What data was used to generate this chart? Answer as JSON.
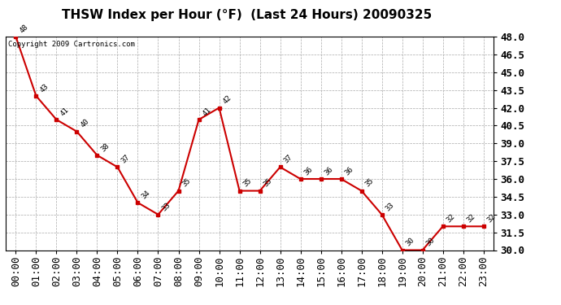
{
  "title": "THSW Index per Hour (°F)  (Last 24 Hours) 20090325",
  "copyright": "Copyright 2009 Cartronics.com",
  "hours": [
    "00:00",
    "01:00",
    "02:00",
    "03:00",
    "04:00",
    "05:00",
    "06:00",
    "07:00",
    "08:00",
    "09:00",
    "10:00",
    "11:00",
    "12:00",
    "13:00",
    "14:00",
    "15:00",
    "16:00",
    "17:00",
    "18:00",
    "19:00",
    "20:00",
    "21:00",
    "22:00",
    "23:00"
  ],
  "values": [
    48,
    43,
    41,
    40,
    38,
    37,
    34,
    33,
    35,
    41,
    42,
    35,
    35,
    37,
    36,
    36,
    36,
    35,
    33,
    30,
    30,
    32,
    32,
    32
  ],
  "line_color": "#cc0000",
  "marker_color": "#cc0000",
  "bg_color": "#ffffff",
  "plot_bg_color": "#ffffff",
  "grid_color": "#aaaaaa",
  "ylim_min": 30.0,
  "ylim_max": 48.0,
  "yticks": [
    30.0,
    31.5,
    33.0,
    34.5,
    36.0,
    37.5,
    39.0,
    40.5,
    42.0,
    43.5,
    45.0,
    46.5,
    48.0
  ],
  "title_fontsize": 11,
  "copyright_fontsize": 6.5,
  "label_fontsize": 6.5,
  "tick_fontsize": 9,
  "ylabel_fontsize": 9
}
